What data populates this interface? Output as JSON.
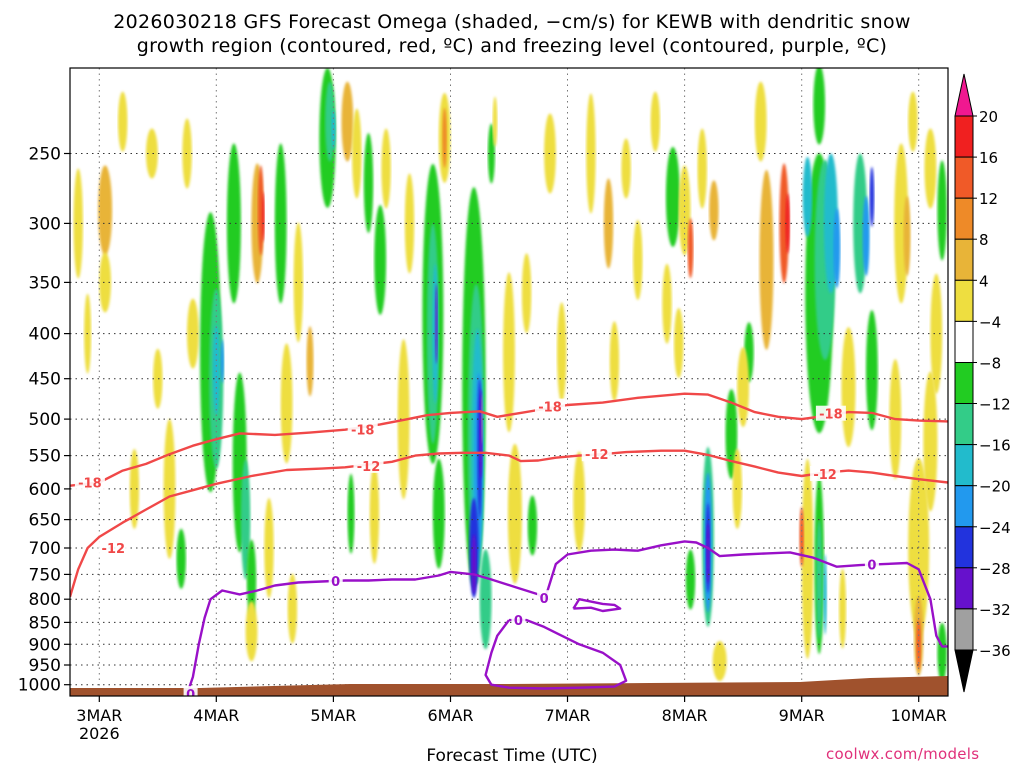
{
  "title": {
    "line1": "2026030218 GFS Forecast Omega (shaded, −cm/s) for KEWB with dendritic snow",
    "line2": "growth region (contoured, red, ºC) and freezing level (contoured, purple, ºC)"
  },
  "chart_data": {
    "type": "heatmap",
    "y_axis": {
      "scale": "log",
      "range": [
        1030,
        200
      ],
      "ticks": [
        250,
        300,
        350,
        400,
        450,
        500,
        550,
        600,
        650,
        700,
        750,
        800,
        850,
        900,
        950,
        1000
      ]
    },
    "x_axis": {
      "range_days": [
        2.75,
        10.25
      ],
      "ticks": [
        {
          "day": 3,
          "label": "3MAR",
          "sublabel": "2026"
        },
        {
          "day": 4,
          "label": "4MAR"
        },
        {
          "day": 5,
          "label": "5MAR"
        },
        {
          "day": 6,
          "label": "6MAR"
        },
        {
          "day": 7,
          "label": "7MAR"
        },
        {
          "day": 8,
          "label": "8MAR"
        },
        {
          "day": 9,
          "label": "9MAR"
        },
        {
          "day": 10,
          "label": "10MAR"
        }
      ]
    },
    "xlabel": "Forecast Time (UTC)",
    "grid": true,
    "colorbar": {
      "ticks": [
        "20",
        "16",
        "12",
        "8",
        "4",
        "−4",
        "−8",
        "−12",
        "−16",
        "−20",
        "−24",
        "−28",
        "−32",
        "−36"
      ],
      "colors": [
        "#f02020",
        "#f05a28",
        "#ee8a28",
        "#e8b438",
        "#eede40",
        "#ffffff",
        "#22cc22",
        "#33cc88",
        "#22bbcc",
        "#2299ee",
        "#2233dd",
        "#6611cc",
        "#aa11cc",
        "#a0a0a0"
      ],
      "top_arrow": "#f01890",
      "bottom_arrow": "#000000"
    },
    "contours": [
      {
        "name": "-18",
        "color": "#f04848",
        "label": "−18",
        "label_text": "-18",
        "points": [
          [
            2.75,
            595
          ],
          [
            3.0,
            590
          ],
          [
            3.2,
            572
          ],
          [
            3.4,
            562
          ],
          [
            3.6,
            548
          ],
          [
            3.8,
            536
          ],
          [
            4.0,
            527
          ],
          [
            4.2,
            519
          ],
          [
            4.5,
            521
          ],
          [
            4.8,
            518
          ],
          [
            5.1,
            514
          ],
          [
            5.4,
            507
          ],
          [
            5.6,
            501
          ],
          [
            5.8,
            495
          ],
          [
            6.0,
            492
          ],
          [
            6.25,
            490
          ],
          [
            6.4,
            497
          ],
          [
            6.6,
            492
          ],
          [
            6.8,
            487
          ],
          [
            7.0,
            482
          ],
          [
            7.3,
            479
          ],
          [
            7.6,
            473
          ],
          [
            8.0,
            468
          ],
          [
            8.2,
            469
          ],
          [
            8.4,
            479
          ],
          [
            8.6,
            491
          ],
          [
            8.8,
            497
          ],
          [
            9.0,
            500
          ],
          [
            9.2,
            496
          ],
          [
            9.4,
            491
          ],
          [
            9.6,
            492
          ],
          [
            9.8,
            500
          ],
          [
            10.0,
            502
          ],
          [
            10.25,
            503
          ]
        ],
        "labels_at": [
          [
            2.92,
            590
          ],
          [
            5.25,
            514
          ],
          [
            6.85,
            484
          ],
          [
            9.25,
            493
          ]
        ]
      },
      {
        "name": "-12",
        "color": "#f04848",
        "label": "−12",
        "label_text": "-12",
        "points": [
          [
            2.75,
            795
          ],
          [
            2.82,
            740
          ],
          [
            2.9,
            700
          ],
          [
            3.0,
            680
          ],
          [
            3.2,
            655
          ],
          [
            3.4,
            633
          ],
          [
            3.6,
            612
          ],
          [
            3.8,
            602
          ],
          [
            4.0,
            592
          ],
          [
            4.3,
            580
          ],
          [
            4.6,
            571
          ],
          [
            4.9,
            569
          ],
          [
            5.1,
            567
          ],
          [
            5.3,
            563
          ],
          [
            5.5,
            559
          ],
          [
            5.7,
            550
          ],
          [
            5.9,
            547
          ],
          [
            6.1,
            546
          ],
          [
            6.3,
            546
          ],
          [
            6.5,
            550
          ],
          [
            6.6,
            558
          ],
          [
            6.75,
            557
          ],
          [
            6.9,
            553
          ],
          [
            7.1,
            550
          ],
          [
            7.3,
            548
          ],
          [
            7.5,
            545
          ],
          [
            7.8,
            543
          ],
          [
            8.0,
            543
          ],
          [
            8.2,
            549
          ],
          [
            8.4,
            558
          ],
          [
            8.6,
            566
          ],
          [
            8.8,
            575
          ],
          [
            9.0,
            580
          ],
          [
            9.2,
            575
          ],
          [
            9.4,
            572
          ],
          [
            9.6,
            575
          ],
          [
            9.8,
            580
          ],
          [
            10.0,
            585
          ],
          [
            10.25,
            590
          ]
        ],
        "labels_at": [
          [
            3.12,
            700
          ],
          [
            5.3,
            565
          ],
          [
            7.25,
            548
          ],
          [
            9.2,
            577
          ]
        ]
      },
      {
        "name": "0",
        "color": "#9910c8",
        "label": "0",
        "label_text": "0",
        "points": [
          [
            3.75,
            1025
          ],
          [
            3.8,
            980
          ],
          [
            3.85,
            900
          ],
          [
            3.9,
            840
          ],
          [
            3.95,
            800
          ],
          [
            4.05,
            782
          ],
          [
            4.2,
            790
          ],
          [
            4.35,
            782
          ],
          [
            4.5,
            772
          ],
          [
            4.7,
            766
          ],
          [
            4.9,
            764
          ],
          [
            5.1,
            762
          ],
          [
            5.3,
            762
          ],
          [
            5.5,
            760
          ],
          [
            5.7,
            760
          ],
          [
            5.9,
            752
          ],
          [
            6.0,
            745
          ],
          [
            6.2,
            750
          ],
          [
            6.35,
            760
          ],
          [
            6.55,
            775
          ],
          [
            6.75,
            790
          ],
          [
            6.8,
            800
          ],
          [
            6.83,
            782
          ],
          [
            6.9,
            730
          ],
          [
            7.0,
            712
          ],
          [
            7.2,
            705
          ],
          [
            7.4,
            703
          ],
          [
            7.6,
            705
          ],
          [
            7.8,
            695
          ],
          [
            8.0,
            688
          ],
          [
            8.1,
            690
          ],
          [
            8.2,
            700
          ],
          [
            8.3,
            715
          ],
          [
            8.5,
            712
          ],
          [
            8.7,
            710
          ],
          [
            8.9,
            708
          ],
          [
            9.1,
            718
          ],
          [
            9.3,
            735
          ],
          [
            9.5,
            732
          ],
          [
            9.7,
            730
          ],
          [
            9.9,
            728
          ],
          [
            10.0,
            740
          ],
          [
            10.1,
            800
          ],
          [
            10.15,
            880
          ],
          [
            10.2,
            905
          ],
          [
            10.25,
            905
          ]
        ],
        "labels_at": [
          [
            3.78,
            1025
          ],
          [
            5.02,
            763
          ],
          [
            6.8,
            798
          ],
          [
            9.6,
            731
          ]
        ]
      },
      {
        "name": "0-lobe",
        "color": "#9910c8",
        "label_text": "0",
        "points": [
          [
            6.5,
            845
          ],
          [
            6.4,
            880
          ],
          [
            6.35,
            920
          ],
          [
            6.3,
            975
          ],
          [
            6.35,
            1000
          ],
          [
            6.5,
            1008
          ],
          [
            6.8,
            1010
          ],
          [
            7.1,
            1008
          ],
          [
            7.4,
            1005
          ],
          [
            7.5,
            990
          ],
          [
            7.45,
            950
          ],
          [
            7.3,
            920
          ],
          [
            7.1,
            900
          ],
          [
            6.95,
            880
          ],
          [
            6.8,
            860
          ],
          [
            6.65,
            845
          ],
          [
            6.5,
            845
          ]
        ],
        "labels_at": [
          [
            6.58,
            845
          ]
        ]
      },
      {
        "name": "0-small",
        "color": "#9910c8",
        "points": [
          [
            7.05,
            820
          ],
          [
            7.1,
            800
          ],
          [
            7.2,
            805
          ],
          [
            7.3,
            810
          ],
          [
            7.4,
            812
          ],
          [
            7.45,
            820
          ],
          [
            7.3,
            825
          ],
          [
            7.2,
            818
          ],
          [
            7.05,
            820
          ]
        ]
      }
    ],
    "terrain_color": "#a0522d"
  },
  "credit": "coolwx.com/models"
}
